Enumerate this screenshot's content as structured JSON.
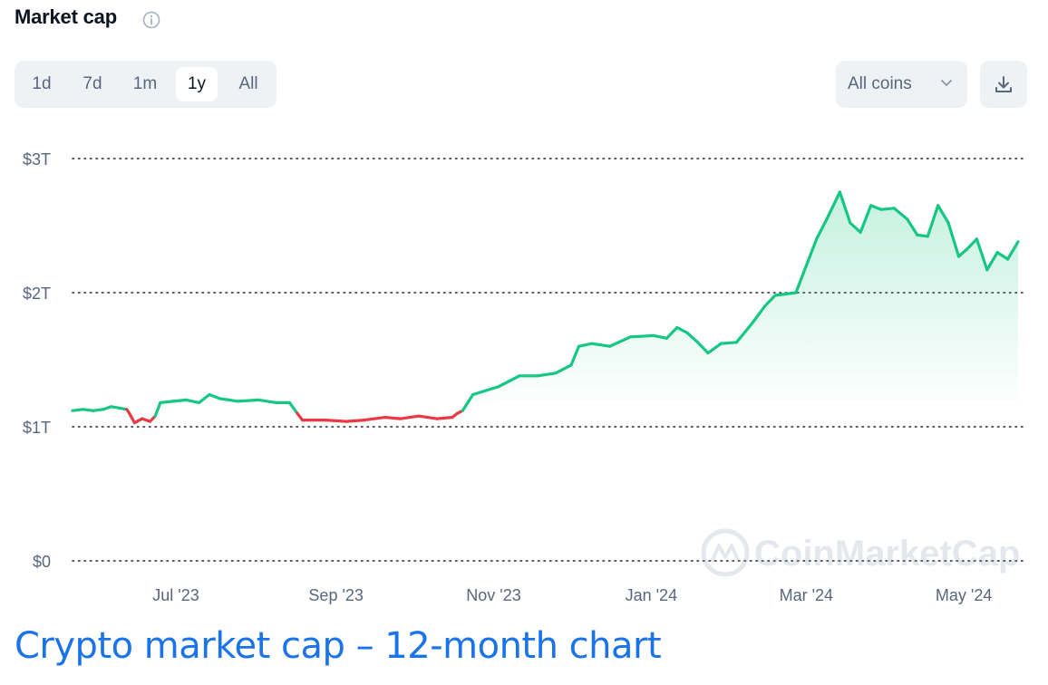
{
  "header": {
    "title": "Market cap",
    "info_icon": "info-icon"
  },
  "range_tabs": [
    {
      "label": "1d"
    },
    {
      "label": "7d"
    },
    {
      "label": "1m"
    },
    {
      "label": "1y",
      "active": true
    },
    {
      "label": "All"
    }
  ],
  "coins_select": {
    "label": "All coins",
    "icon": "chevron-down-icon"
  },
  "download": {
    "icon": "download-icon"
  },
  "watermark": {
    "text": "CoinMarketCap"
  },
  "caption": "Crypto market cap – 12-month chart",
  "colors": {
    "up": "#16c784",
    "down": "#ea3943",
    "grid": "#222531",
    "muted": "#58667e",
    "caption": "#1a73e8"
  },
  "chart_data": {
    "type": "line",
    "title": "Market cap",
    "y_ticks": [
      {
        "value": 0,
        "label": "$0"
      },
      {
        "value": 1,
        "label": "$1T"
      },
      {
        "value": 2,
        "label": "$2T"
      },
      {
        "value": 3,
        "label": "$3T"
      }
    ],
    "ylim": [
      0,
      3
    ],
    "y_unit": "USD trillions",
    "x_ticks": [
      {
        "date": "2023-07-01",
        "label": "Jul '23"
      },
      {
        "date": "2023-09-01",
        "label": "Sep '23"
      },
      {
        "date": "2023-11-01",
        "label": "Nov '23"
      },
      {
        "date": "2024-01-01",
        "label": "Jan '24"
      },
      {
        "date": "2024-03-01",
        "label": "Mar '24"
      },
      {
        "date": "2024-05-01",
        "label": "May '24"
      }
    ],
    "xlim": [
      "2023-05-22",
      "2024-05-22"
    ],
    "grid": "horizontal dotted",
    "baseline_value": 1.12,
    "series": [
      {
        "points": [
          [
            "2023-05-22",
            1.12
          ],
          [
            "2023-05-26",
            1.13
          ],
          [
            "2023-05-30",
            1.12
          ],
          [
            "2023-06-03",
            1.13
          ],
          [
            "2023-06-06",
            1.15
          ],
          [
            "2023-06-09",
            1.14
          ],
          [
            "2023-06-12",
            1.13
          ],
          [
            "2023-06-13",
            1.1
          ],
          [
            "2023-06-15",
            1.03
          ],
          [
            "2023-06-18",
            1.06
          ],
          [
            "2023-06-21",
            1.04
          ],
          [
            "2023-06-23",
            1.08
          ],
          [
            "2023-06-25",
            1.18
          ],
          [
            "2023-06-30",
            1.19
          ],
          [
            "2023-07-05",
            1.2
          ],
          [
            "2023-07-10",
            1.18
          ],
          [
            "2023-07-14",
            1.24
          ],
          [
            "2023-07-18",
            1.21
          ],
          [
            "2023-07-25",
            1.19
          ],
          [
            "2023-08-02",
            1.2
          ],
          [
            "2023-08-09",
            1.18
          ],
          [
            "2023-08-14",
            1.18
          ],
          [
            "2023-08-17",
            1.1
          ],
          [
            "2023-08-19",
            1.05
          ],
          [
            "2023-08-28",
            1.05
          ],
          [
            "2023-09-05",
            1.04
          ],
          [
            "2023-09-12",
            1.05
          ],
          [
            "2023-09-20",
            1.07
          ],
          [
            "2023-09-26",
            1.06
          ],
          [
            "2023-10-03",
            1.08
          ],
          [
            "2023-10-10",
            1.06
          ],
          [
            "2023-10-16",
            1.07
          ],
          [
            "2023-10-18",
            1.1
          ],
          [
            "2023-10-20",
            1.12
          ],
          [
            "2023-10-24",
            1.24
          ],
          [
            "2023-10-29",
            1.27
          ],
          [
            "2023-11-03",
            1.3
          ],
          [
            "2023-11-07",
            1.34
          ],
          [
            "2023-11-11",
            1.38
          ],
          [
            "2023-11-18",
            1.38
          ],
          [
            "2023-11-25",
            1.4
          ],
          [
            "2023-12-01",
            1.46
          ],
          [
            "2023-12-04",
            1.6
          ],
          [
            "2023-12-09",
            1.62
          ],
          [
            "2023-12-16",
            1.6
          ],
          [
            "2023-12-24",
            1.67
          ],
          [
            "2024-01-02",
            1.68
          ],
          [
            "2024-01-07",
            1.66
          ],
          [
            "2024-01-11",
            1.74
          ],
          [
            "2024-01-15",
            1.7
          ],
          [
            "2024-01-19",
            1.63
          ],
          [
            "2024-01-23",
            1.55
          ],
          [
            "2024-01-28",
            1.62
          ],
          [
            "2024-02-03",
            1.63
          ],
          [
            "2024-02-09",
            1.77
          ],
          [
            "2024-02-14",
            1.9
          ],
          [
            "2024-02-18",
            1.98
          ],
          [
            "2024-02-26",
            2.0
          ],
          [
            "2024-03-01",
            2.2
          ],
          [
            "2024-03-05",
            2.4
          ],
          [
            "2024-03-09",
            2.55
          ],
          [
            "2024-03-14",
            2.75
          ],
          [
            "2024-03-18",
            2.52
          ],
          [
            "2024-03-22",
            2.45
          ],
          [
            "2024-03-26",
            2.65
          ],
          [
            "2024-03-30",
            2.62
          ],
          [
            "2024-04-04",
            2.63
          ],
          [
            "2024-04-09",
            2.55
          ],
          [
            "2024-04-13",
            2.43
          ],
          [
            "2024-04-17",
            2.42
          ],
          [
            "2024-04-21",
            2.65
          ],
          [
            "2024-04-25",
            2.52
          ],
          [
            "2024-04-29",
            2.27
          ],
          [
            "2024-05-02",
            2.32
          ],
          [
            "2024-05-06",
            2.4
          ],
          [
            "2024-05-10",
            2.17
          ],
          [
            "2024-05-14",
            2.3
          ],
          [
            "2024-05-18",
            2.25
          ],
          [
            "2024-05-22",
            2.38
          ]
        ]
      }
    ]
  }
}
